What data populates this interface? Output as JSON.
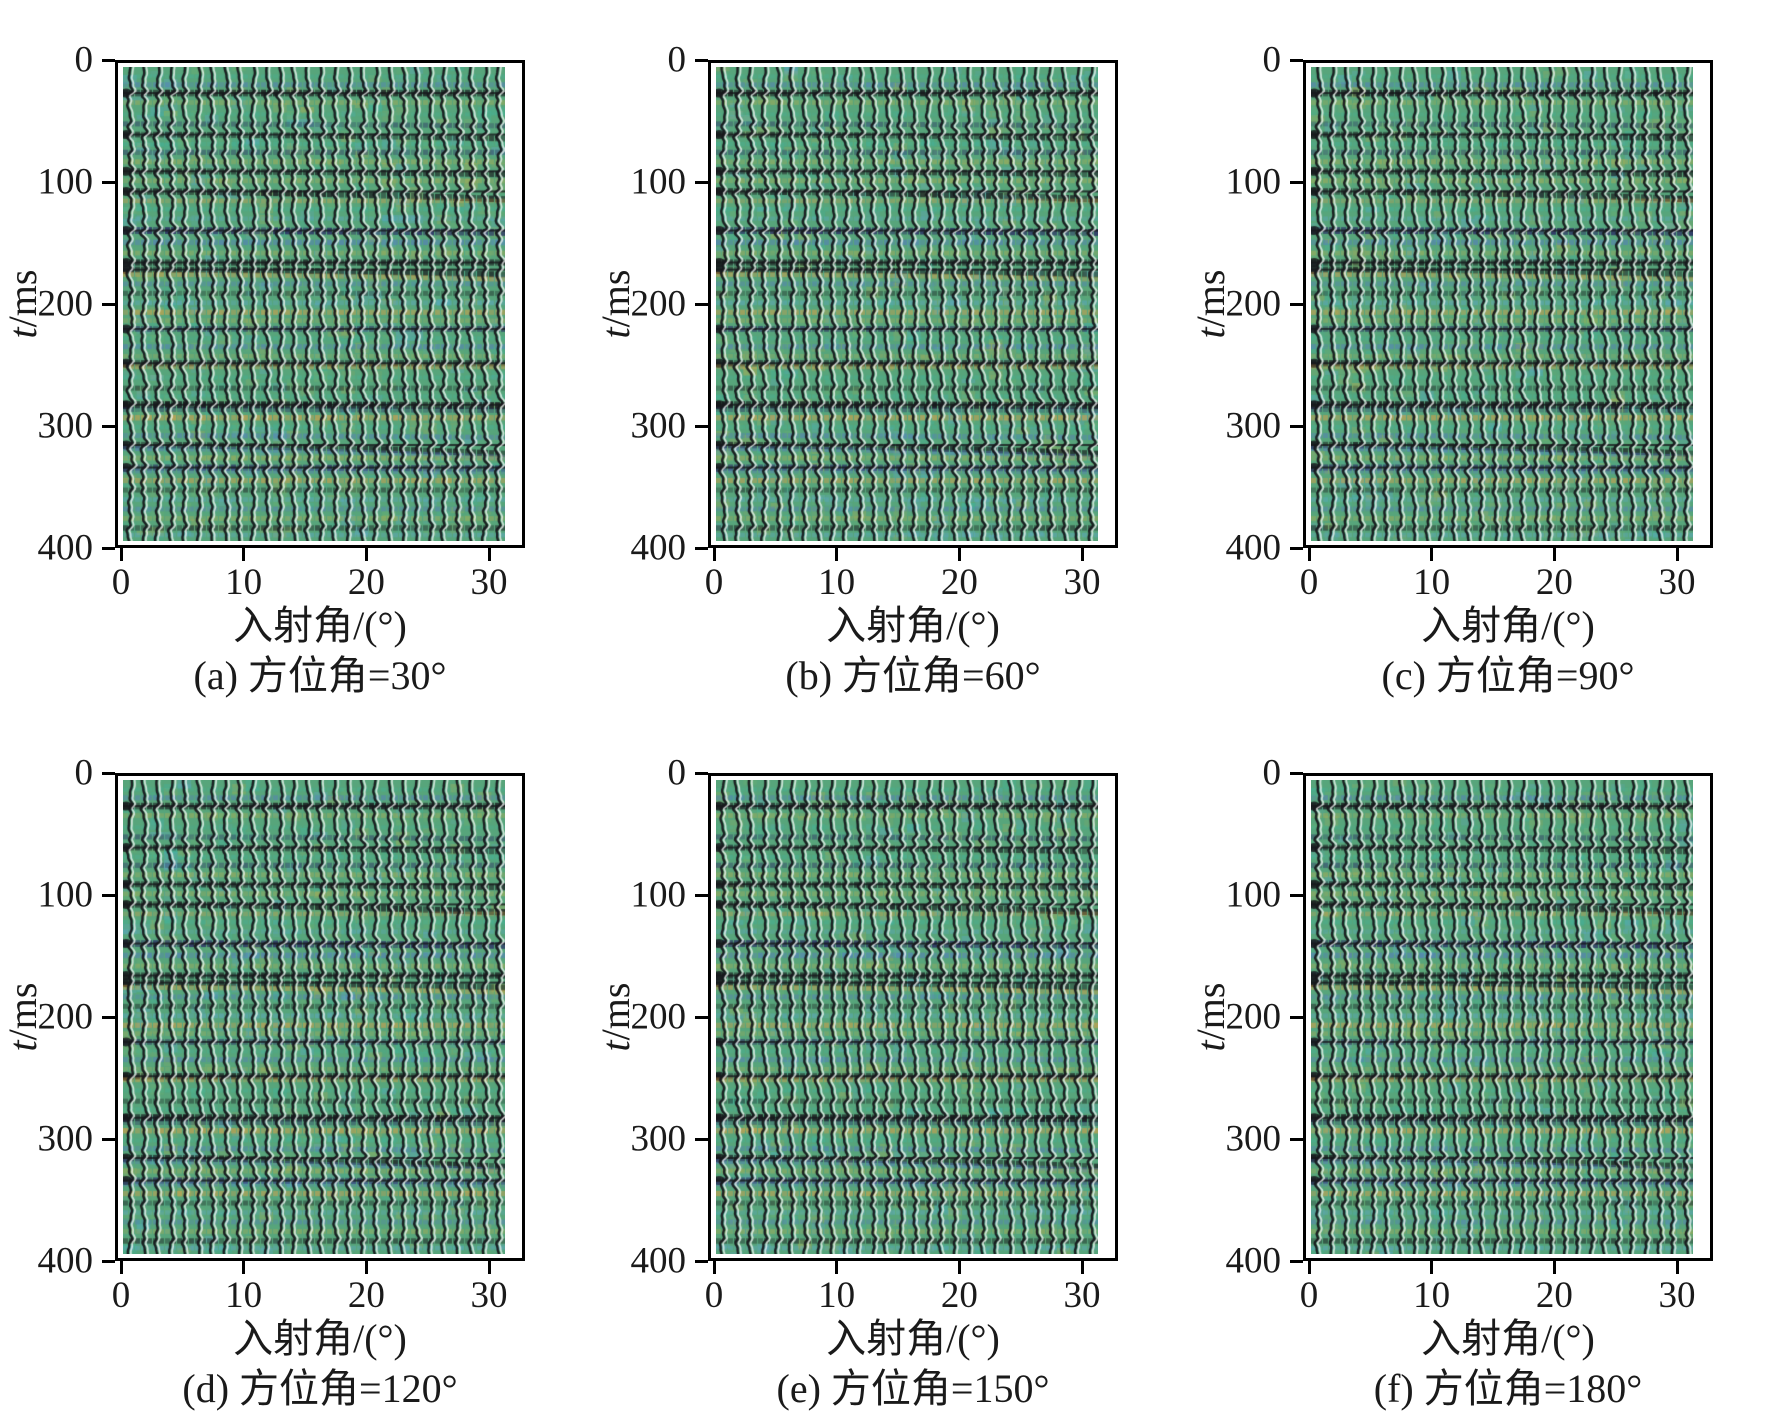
{
  "axes": {
    "ylabel_var": "t",
    "ylabel_unit": "/ms",
    "xlabel": "入射角/(°)",
    "y_ticks": [
      "0",
      "100",
      "200",
      "300",
      "400"
    ],
    "x_ticks": [
      "0",
      "10",
      "20",
      "30"
    ]
  },
  "subplots": [
    {
      "id": "a",
      "caption": "(a) 方位角=30°",
      "seed": 11
    },
    {
      "id": "b",
      "caption": "(b) 方位角=60°",
      "seed": 22
    },
    {
      "id": "c",
      "caption": "(c) 方位角=90°",
      "seed": 33
    },
    {
      "id": "d",
      "caption": "(d) 方位角=120°",
      "seed": 44
    },
    {
      "id": "e",
      "caption": "(e) 方位角=150°",
      "seed": 55
    },
    {
      "id": "f",
      "caption": "(f) 方位角=180°",
      "seed": 66
    }
  ],
  "chart_data": {
    "type": "heatmap",
    "title": "",
    "xlabel": "入射角/(°)",
    "ylabel": "t/ms",
    "x_range": [
      0,
      32.5
    ],
    "y_range": [
      0,
      400
    ],
    "x_ticks": [
      0,
      10,
      20,
      30
    ],
    "y_ticks": [
      0,
      100,
      200,
      300,
      400
    ],
    "n_traces": 28,
    "panels": [
      {
        "label": "(a)",
        "azimuth_deg": 30
      },
      {
        "label": "(b)",
        "azimuth_deg": 60
      },
      {
        "label": "(c)",
        "azimuth_deg": 90
      },
      {
        "label": "(d)",
        "azimuth_deg": 120
      },
      {
        "label": "(e)",
        "azimuth_deg": 150
      },
      {
        "label": "(f)",
        "azimuth_deg": 180
      }
    ],
    "palette": {
      "base": "#57a57b",
      "teal": "#3cb8a6",
      "cyan": "#5fa9d6",
      "blue": "#5478c4",
      "navy": "#2d3366",
      "black": "#17181c",
      "olive": "#b2af52",
      "orange": "#e2a044",
      "green2": "#74b66d",
      "highlight": "#ffffff"
    },
    "events": [
      [
        8,
        "teal",
        0.3,
        0
      ],
      [
        15,
        "blue",
        0.5,
        0
      ],
      [
        22,
        "black",
        0.9,
        0
      ],
      [
        30,
        "olive",
        0.45,
        0
      ],
      [
        40,
        "teal",
        0.25,
        0
      ],
      [
        48,
        "navy",
        0.5,
        2
      ],
      [
        57,
        "black",
        0.7,
        4
      ],
      [
        65,
        "teal",
        0.35,
        0
      ],
      [
        72,
        "navy",
        0.55,
        0
      ],
      [
        80,
        "olive",
        0.5,
        0
      ],
      [
        88,
        "black",
        0.75,
        3
      ],
      [
        96,
        "olive",
        0.5,
        0
      ],
      [
        105,
        "black",
        0.85,
        8
      ],
      [
        113,
        "orange",
        0.4,
        0
      ],
      [
        120,
        "teal",
        0.35,
        0
      ],
      [
        128,
        "cyan",
        0.35,
        0
      ],
      [
        138,
        "navy",
        0.95,
        2
      ],
      [
        148,
        "blue",
        0.6,
        0
      ],
      [
        157,
        "olive",
        0.45,
        0
      ],
      [
        165,
        "black",
        0.8,
        0
      ],
      [
        171,
        "black",
        0.75,
        5
      ],
      [
        175,
        "orange",
        0.5,
        5
      ],
      [
        183,
        "blue",
        0.45,
        0
      ],
      [
        191,
        "black",
        0.5,
        0
      ],
      [
        199,
        "cyan",
        0.45,
        0
      ],
      [
        207,
        "orange",
        0.55,
        0
      ],
      [
        214,
        "olive",
        0.4,
        0
      ],
      [
        221,
        "navy",
        0.7,
        0
      ],
      [
        229,
        "teal",
        0.3,
        0
      ],
      [
        236,
        "blue",
        0.5,
        0
      ],
      [
        244,
        "olive",
        0.35,
        0
      ],
      [
        250,
        "black",
        0.8,
        0
      ],
      [
        253,
        "orange",
        0.45,
        0
      ],
      [
        262,
        "teal",
        0.3,
        0
      ],
      [
        271,
        "black",
        0.5,
        0
      ],
      [
        278,
        "teal",
        0.3,
        0
      ],
      [
        285,
        "black",
        1,
        1
      ],
      [
        289,
        "navy",
        0.5,
        1
      ],
      [
        296,
        "orange",
        0.6,
        0
      ],
      [
        304,
        "teal",
        0.35,
        0
      ],
      [
        311,
        "blue",
        0.5,
        2
      ],
      [
        319,
        "black",
        0.85,
        9
      ],
      [
        322,
        "blue",
        0.5,
        9
      ],
      [
        330,
        "olive",
        0.5,
        0
      ],
      [
        338,
        "navy",
        0.8,
        1
      ],
      [
        341,
        "blue",
        0.4,
        1
      ],
      [
        349,
        "orange",
        0.55,
        0
      ],
      [
        357,
        "black",
        0.5,
        0
      ],
      [
        365,
        "cyan",
        0.4,
        0
      ],
      [
        373,
        "blue",
        0.45,
        0
      ],
      [
        381,
        "olive",
        0.45,
        0
      ],
      [
        389,
        "black",
        0.6,
        0
      ],
      [
        395,
        "cyan",
        0.4,
        0
      ]
    ]
  }
}
